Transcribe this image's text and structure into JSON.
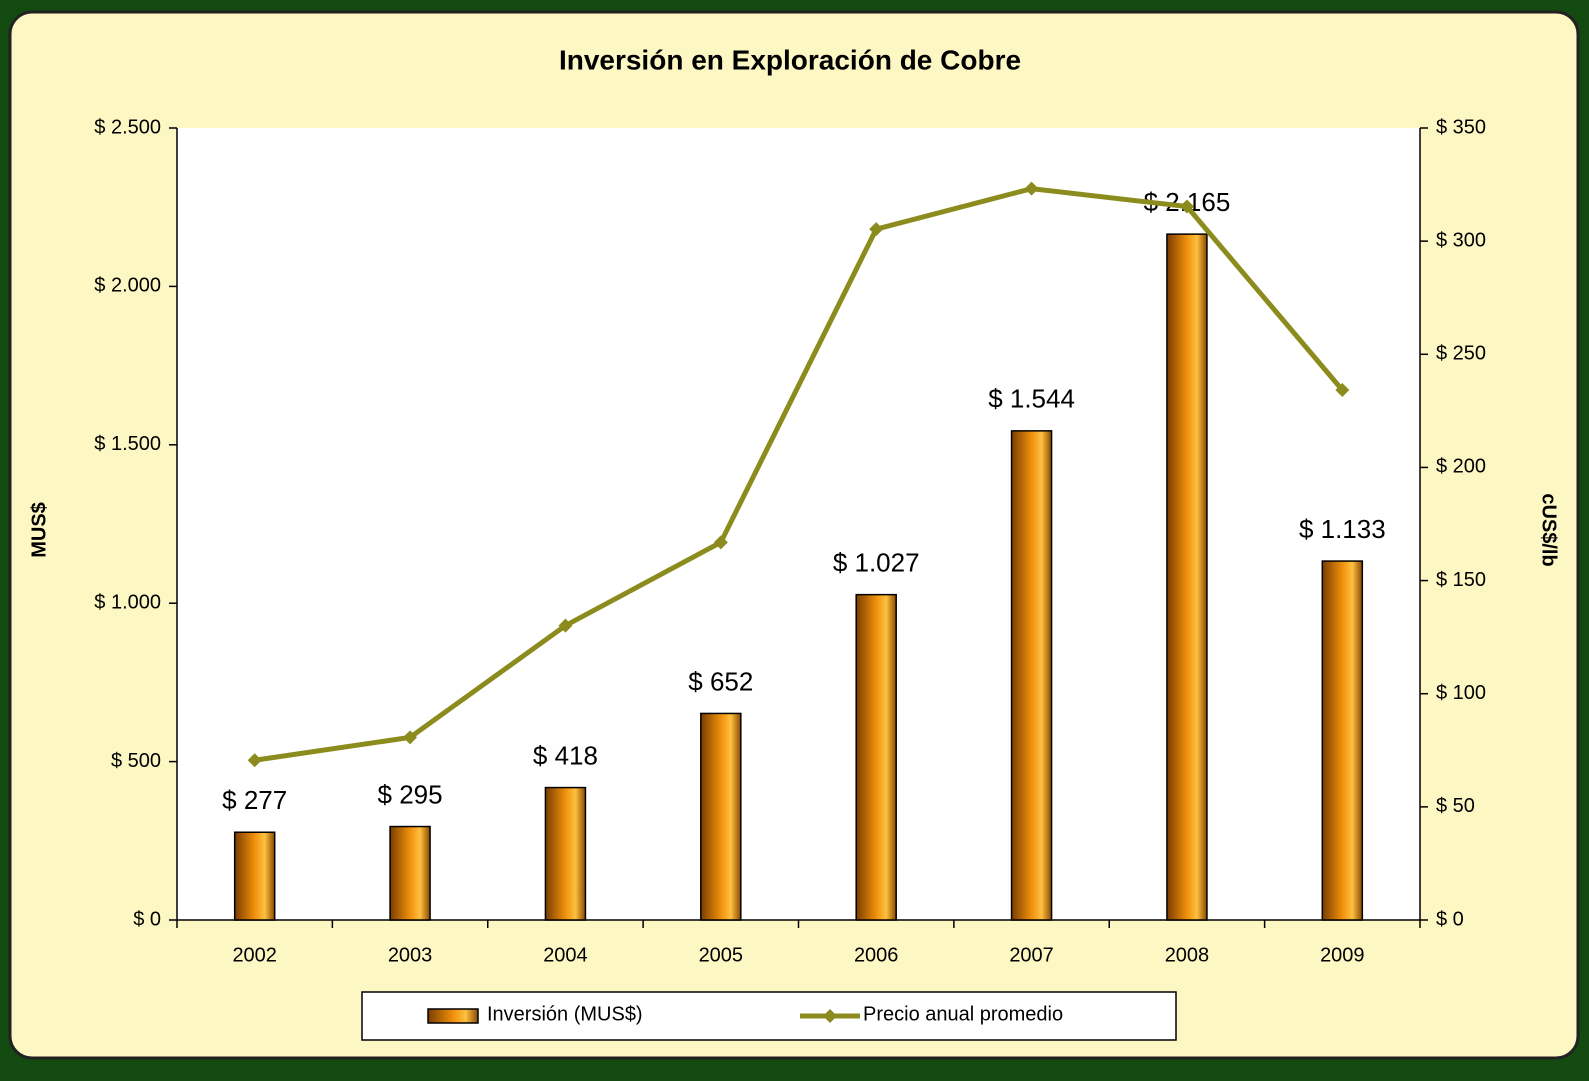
{
  "chart_data": {
    "type": "bar_line",
    "title": "Inversión en Exploración de Cobre",
    "categories": [
      "2002",
      "2003",
      "2004",
      "2005",
      "2006",
      "2007",
      "2008",
      "2009"
    ],
    "series": [
      {
        "name": "Inversión (MUS$)",
        "color": "#f0900c",
        "values": [
          277,
          295,
          418,
          652,
          1027,
          1544,
          2165,
          1133
        ],
        "value_labels": [
          "$ 277",
          "$ 295",
          "$ 418",
          "$ 652",
          "$ 1.027",
          "$ 1.544",
          "$ 2.165",
          "$ 1.133"
        ]
      },
      {
        "name": "Precio anual promedio",
        "color": "#8c8c1e",
        "axis": "y2",
        "values": [
          70.6,
          80.7,
          130.1,
          166.9,
          305.3,
          323.2,
          315.3,
          234.2
        ]
      }
    ],
    "ylabel": "MUS$",
    "y2label": "cUS$/lb",
    "ylim": [
      0,
      2500
    ],
    "yticks": [
      {
        "value": 0,
        "label": "$ 0"
      },
      {
        "value": 500,
        "label": "$ 500"
      },
      {
        "value": 1000,
        "label": "$ 1.000"
      },
      {
        "value": 1500,
        "label": "$ 1.500"
      },
      {
        "value": 2000,
        "label": "$ 2.000"
      },
      {
        "value": 2500,
        "label": "$ 2.500"
      }
    ],
    "y2lim": [
      0,
      350
    ],
    "y2ticks": [
      {
        "value": 0,
        "label": "$ 0"
      },
      {
        "value": 50,
        "label": "$ 50"
      },
      {
        "value": 100,
        "label": "$ 100"
      },
      {
        "value": 150,
        "label": "$ 150"
      },
      {
        "value": 200,
        "label": "$ 200"
      },
      {
        "value": 250,
        "label": "$ 250"
      },
      {
        "value": 300,
        "label": "$ 300"
      },
      {
        "value": 350,
        "label": "$ 350"
      }
    ],
    "legend": "bottom"
  }
}
